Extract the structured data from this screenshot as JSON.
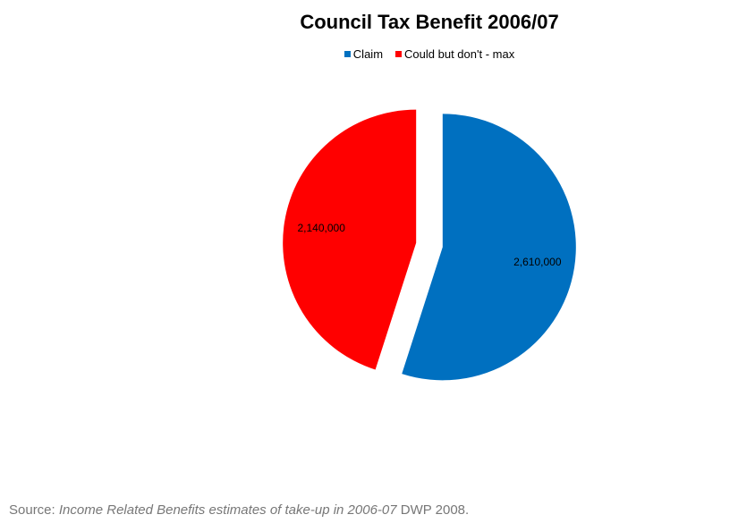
{
  "chart_data": {
    "type": "pie",
    "title": "Council Tax Benefit 2006/07",
    "legend_position": "top",
    "slices": [
      {
        "label": "Claim",
        "value": 2610000,
        "value_label": "2,610,000",
        "color": "#0070C0"
      },
      {
        "label": "Could but don't - max",
        "value": 2140000,
        "value_label": "2,140,000",
        "color": "#FF0000"
      }
    ]
  },
  "source": {
    "prefix": "Source: ",
    "title": "Income Related Benefits estimates of take-up  in 2006-07",
    "suffix": " DWP 2008."
  }
}
